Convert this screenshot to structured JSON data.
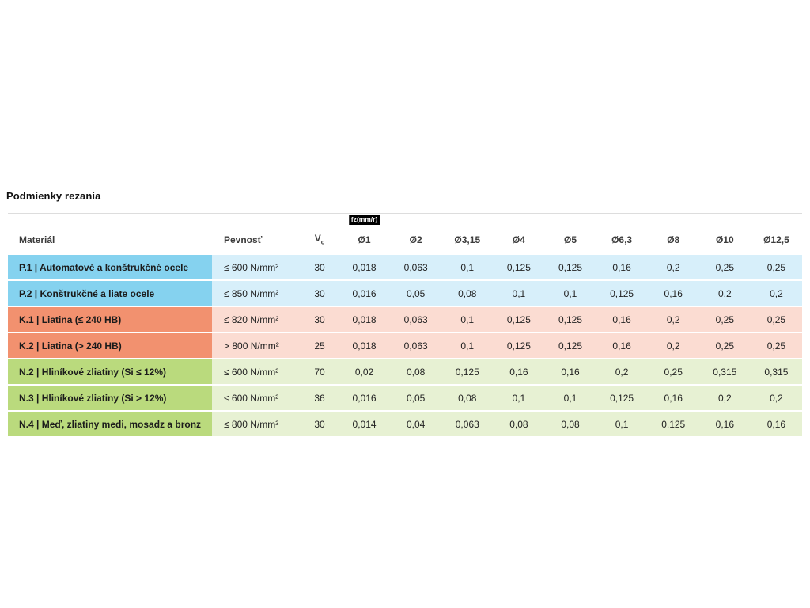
{
  "page": {
    "title": "Podmienky rezania"
  },
  "table": {
    "header": {
      "material": "Materiál",
      "strength": "Pevnosť",
      "vc_main": "V",
      "vc_sub": "c",
      "fz_badge": "fz(mm/r)",
      "diameters": [
        "Ø1",
        "Ø2",
        "Ø3,15",
        "Ø4",
        "Ø5",
        "Ø6,3",
        "Ø8",
        "Ø10",
        "Ø12,5"
      ]
    },
    "rows": [
      {
        "group": "P",
        "material": "P.1 | Automatové a konštrukčné ocele",
        "strength": "≤ 600 N/mm²",
        "vc": "30",
        "values": [
          "0,018",
          "0,063",
          "0,1",
          "0,125",
          "0,125",
          "0,16",
          "0,2",
          "0,25",
          "0,25"
        ]
      },
      {
        "group": "P",
        "material": "P.2 | Konštrukčné a liate ocele",
        "strength": "≤ 850 N/mm²",
        "vc": "30",
        "values": [
          "0,016",
          "0,05",
          "0,08",
          "0,1",
          "0,1",
          "0,125",
          "0,16",
          "0,2",
          "0,2"
        ]
      },
      {
        "group": "K",
        "material": "K.1 | Liatina (≤ 240 HB)",
        "strength": "≤ 820 N/mm²",
        "vc": "30",
        "values": [
          "0,018",
          "0,063",
          "0,1",
          "0,125",
          "0,125",
          "0,16",
          "0,2",
          "0,25",
          "0,25"
        ]
      },
      {
        "group": "K",
        "material": "K.2 | Liatina (> 240 HB)",
        "strength": "> 800 N/mm²",
        "vc": "25",
        "values": [
          "0,018",
          "0,063",
          "0,1",
          "0,125",
          "0,125",
          "0,16",
          "0,2",
          "0,25",
          "0,25"
        ]
      },
      {
        "group": "N",
        "material": "N.2 | Hliníkové zliatiny (Si ≤ 12%)",
        "strength": "≤ 600 N/mm²",
        "vc": "70",
        "values": [
          "0,02",
          "0,08",
          "0,125",
          "0,16",
          "0,16",
          "0,2",
          "0,25",
          "0,315",
          "0,315"
        ]
      },
      {
        "group": "N",
        "material": "N.3 | Hliníkové zliatiny (Si > 12%)",
        "strength": "≤ 600 N/mm²",
        "vc": "36",
        "values": [
          "0,016",
          "0,05",
          "0,08",
          "0,1",
          "0,1",
          "0,125",
          "0,16",
          "0,2",
          "0,2"
        ]
      },
      {
        "group": "N",
        "material": "N.4 | Meď, zliatiny medi, mosadz a bronz",
        "strength": "≤ 800 N/mm²",
        "vc": "30",
        "values": [
          "0,014",
          "0,04",
          "0,063",
          "0,08",
          "0,08",
          "0,1",
          "0,125",
          "0,16",
          "0,16"
        ]
      }
    ]
  },
  "colors": {
    "steel_label": "#85d2ef",
    "steel_tint": "#d7effa",
    "cast_iron_label": "#f2916f",
    "cast_iron_tint": "#fbdcd2",
    "nonferrous_label": "#bada7d",
    "nonferrous_tint": "#e7f1d3",
    "fz_badge_bg": "#000000",
    "fz_badge_text": "#ffffff"
  }
}
